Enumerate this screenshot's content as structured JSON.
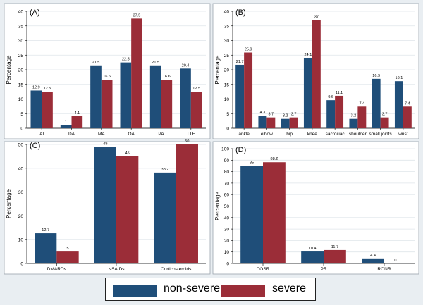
{
  "colors": {
    "non_severe": "#1f4e79",
    "severe": "#9b2d38",
    "plot_bg": "#ffffff",
    "figure_bg": "#e9eef2",
    "grid": "#dfe5ea"
  },
  "legend": [
    {
      "name": "non-severe",
      "color": "#1f4e79"
    },
    {
      "name": "severe",
      "color": "#9b2d38"
    }
  ],
  "chart_data": [
    {
      "type": "bar",
      "panel_label": "(A)",
      "ylabel": "Percentage",
      "ylim": [
        0,
        40
      ],
      "yticks": [
        0,
        5,
        10,
        15,
        20,
        25,
        30,
        35,
        40
      ],
      "categories": [
        "AI",
        "DA",
        "MA",
        "OA",
        "PA",
        "TTE"
      ],
      "series": [
        {
          "name": "non-severe",
          "values": [
            12.9,
            1,
            21.5,
            22.5,
            21.5,
            20.4
          ]
        },
        {
          "name": "severe",
          "values": [
            12.5,
            4.1,
            16.6,
            37.5,
            16.6,
            12.5
          ]
        }
      ],
      "data_labels": [
        [
          "12.9",
          "1",
          "21.5",
          "22.5",
          "21.5",
          "20.4"
        ],
        [
          "12.5",
          "4.1",
          "16.6",
          "37.5",
          "16.6",
          "12.5"
        ]
      ]
    },
    {
      "type": "bar",
      "panel_label": "(B)",
      "ylabel": "Percentage",
      "ylim": [
        0,
        40
      ],
      "yticks": [
        0,
        5,
        10,
        15,
        20,
        25,
        30,
        35,
        40
      ],
      "categories": [
        "ankle",
        "elbow",
        "hip",
        "knee",
        "sacroiliac",
        "shoulder",
        "small joints",
        "wrist"
      ],
      "series": [
        {
          "name": "non-severe",
          "values": [
            21.7,
            4.3,
            3.2,
            24.1,
            9.6,
            3.2,
            16.9,
            16.1
          ]
        },
        {
          "name": "severe",
          "values": [
            25.9,
            3.7,
            3.7,
            37,
            11.1,
            7.4,
            3.7,
            7.4
          ]
        }
      ],
      "data_labels": [
        [
          "21.7",
          "4.3",
          "3.2",
          "24.1",
          "9.6",
          "3.2",
          "16.9",
          "16.1"
        ],
        [
          "25.9",
          "3.7",
          "3.7",
          "37",
          "11.1",
          "7.4",
          "3.7",
          "7.4"
        ]
      ]
    },
    {
      "type": "bar",
      "panel_label": "(C)",
      "ylabel": "Percentage",
      "ylim": [
        0,
        50
      ],
      "yticks": [
        0,
        10,
        20,
        30,
        40,
        50
      ],
      "categories": [
        "DMARDs",
        "NSAIDs",
        "Corticosteroids"
      ],
      "series": [
        {
          "name": "non-severe",
          "values": [
            12.7,
            49,
            38.2
          ]
        },
        {
          "name": "severe",
          "values": [
            5,
            45,
            50
          ]
        }
      ],
      "data_labels": [
        [
          "12.7",
          "49",
          "38.2"
        ],
        [
          "5",
          "45",
          "50"
        ]
      ]
    },
    {
      "type": "bar",
      "panel_label": "(D)",
      "ylabel": "Percentage",
      "ylim": [
        0,
        100
      ],
      "yticks": [
        0,
        10,
        20,
        30,
        40,
        50,
        60,
        70,
        80,
        90,
        100
      ],
      "categories": [
        "COSR",
        "PR",
        "RONR"
      ],
      "series": [
        {
          "name": "non-severe",
          "values": [
            85,
            10.4,
            4.4
          ]
        },
        {
          "name": "severe",
          "values": [
            88.2,
            11.7,
            0
          ]
        }
      ],
      "data_labels": [
        [
          "85",
          "10.4",
          "4.4"
        ],
        [
          "88.2",
          "11.7",
          "0"
        ]
      ]
    }
  ]
}
